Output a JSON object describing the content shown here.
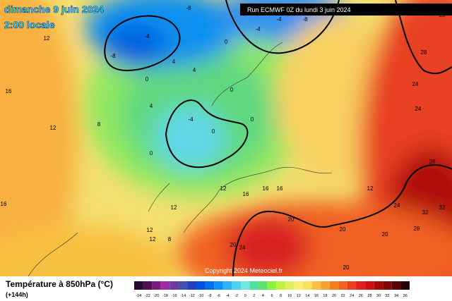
{
  "header": {
    "title": "dimanche 9 juin 2024",
    "time": "2:00 locale",
    "run": "Run ECMWF 0Z du lundi 3 juin 2024"
  },
  "map": {
    "labels": [
      -8,
      -4,
      -8,
      4,
      4,
      0,
      4,
      -4,
      0,
      0,
      0,
      0,
      0,
      -4,
      -8,
      -4,
      8,
      12,
      12,
      16,
      16,
      12,
      12,
      12,
      8,
      12,
      16,
      16,
      16,
      12,
      24,
      24,
      28,
      32,
      32,
      24,
      28,
      20,
      20,
      20,
      20,
      24,
      20,
      28,
      28
    ]
  },
  "copyright": "Copyright 2024 Meteociel.fr",
  "legend": {
    "title": "Température à 850hPa (°C)",
    "lead": "(+144h)",
    "scale": [
      -24,
      -22,
      -20,
      -18,
      -16,
      -14,
      -12,
      -10,
      -8,
      -6,
      -4,
      -2,
      0,
      2,
      4,
      6,
      8,
      10,
      12,
      14,
      16,
      18,
      20,
      22,
      24,
      26,
      28,
      30,
      32,
      34,
      36
    ],
    "colors": [
      "#2a0a2a",
      "#50104f",
      "#7a1a7a",
      "#a02aa0",
      "#6a3aa0",
      "#4050b0",
      "#2040c0",
      "#0050e0",
      "#0070f0",
      "#1090f8",
      "#30b0f8",
      "#50d0f0",
      "#70e8e0",
      "#50e0a0",
      "#60e070",
      "#90f040",
      "#c0f040",
      "#e0f060",
      "#f8f070",
      "#f8e060",
      "#f8c040",
      "#f8a030",
      "#f08020",
      "#f06020",
      "#e84020",
      "#e02020",
      "#c81010",
      "#a80a0a",
      "#800808",
      "#580404",
      "#200000"
    ]
  }
}
